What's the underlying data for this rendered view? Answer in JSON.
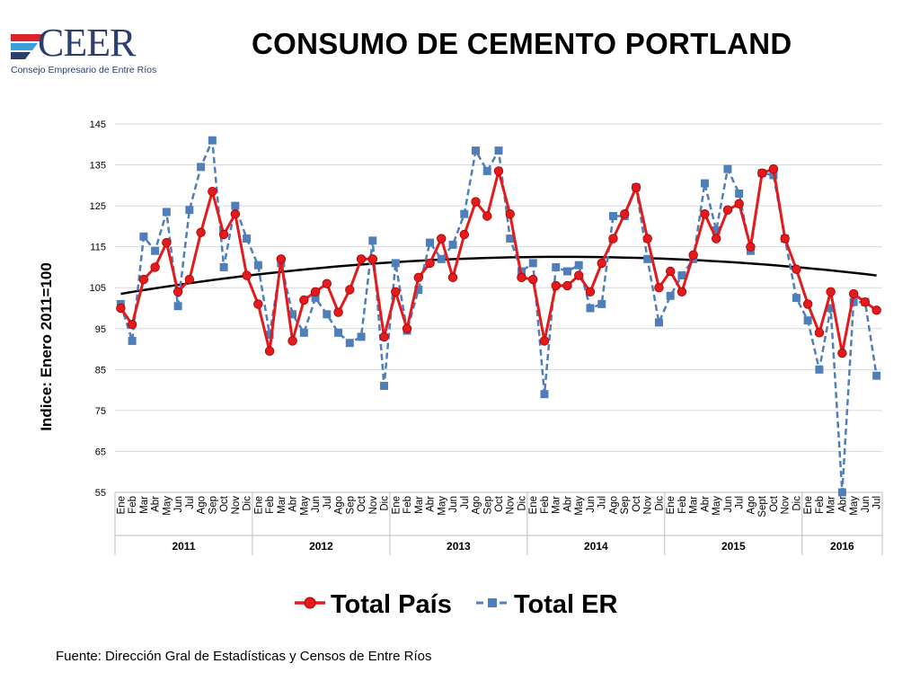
{
  "header": {
    "logo_name": "CEER",
    "logo_subtitle": "Consejo Empresario de Entre Ríos",
    "title": "CONSUMO DE CEMENTO PORTLAND"
  },
  "footer": {
    "source": "Fuente: Dirección Gral de Estadísticas y Censos de Entre Ríos"
  },
  "colors": {
    "total_pais": "#e41a1c",
    "total_er": "#4f7fba",
    "trend": "#000000",
    "grid": "#d9d9d9"
  },
  "chart_data": {
    "type": "line",
    "ylabel": "Indice: Enero 2011=100",
    "xlabel": "",
    "ylim": [
      55,
      145
    ],
    "yticks": [
      55,
      65,
      75,
      85,
      95,
      105,
      115,
      125,
      135,
      145
    ],
    "grid": true,
    "legend_position": "bottom",
    "years": [
      {
        "label": "2011",
        "count": 12
      },
      {
        "label": "2012",
        "count": 12
      },
      {
        "label": "2013",
        "count": 12
      },
      {
        "label": "2014",
        "count": 12
      },
      {
        "label": "2015",
        "count": 12
      },
      {
        "label": "2016",
        "count": 7
      }
    ],
    "categories": [
      "Ene",
      "Feb",
      "Mar",
      "Abr",
      "May",
      "Jun",
      "Jul",
      "Ago",
      "Sep",
      "Oct",
      "Nov",
      "Dic",
      "Ene",
      "Feb",
      "Mar",
      "Abr",
      "May",
      "Jun",
      "Jul",
      "Ago",
      "Sep",
      "Oct",
      "Nov",
      "Dic",
      "Ene",
      "Feb",
      "Mar",
      "Abr",
      "May",
      "Jun",
      "Jul",
      "Ago",
      "Sep",
      "Oct",
      "Nov",
      "Dic",
      "Ene",
      "Feb",
      "Mar",
      "Abr",
      "May",
      "Jun",
      "Jul",
      "Ago",
      "Sep",
      "Oct",
      "Nov",
      "Dic",
      "Ene",
      "Feb",
      "Mar",
      "Abr",
      "May",
      "Jun",
      "Jul",
      "Ago",
      "Sept",
      "Oct",
      "Nov",
      "Dic",
      "Ene",
      "Feb",
      "Mar",
      "Abr",
      "May",
      "Jun",
      "Jul"
    ],
    "series": [
      {
        "name": "Total País",
        "style": "solid-circle",
        "values": [
          100,
          96,
          107,
          110,
          116,
          104,
          107,
          118.5,
          128.5,
          118,
          123,
          108,
          101,
          89.5,
          112,
          92,
          102,
          104,
          106,
          99,
          104.5,
          112,
          112,
          93,
          104,
          95,
          107.5,
          111,
          117,
          107.5,
          118,
          126,
          122.5,
          133.5,
          123,
          107.5,
          107,
          92,
          105.5,
          105.5,
          108,
          104,
          111,
          117,
          123,
          129.5,
          117,
          105,
          109,
          104,
          113,
          123,
          117,
          124,
          125.5,
          115,
          133,
          134,
          117,
          109.5,
          101,
          94,
          104,
          89,
          103.5,
          101.5,
          99.5
        ]
      },
      {
        "name": "Total ER",
        "style": "dashed-square",
        "values": [
          101,
          92,
          117.5,
          114,
          123.5,
          100.5,
          124,
          134.5,
          141,
          110,
          125,
          117,
          110.5,
          93.5,
          111,
          98.5,
          94,
          102.5,
          98.5,
          94,
          91.5,
          93,
          116.5,
          81,
          111,
          94.5,
          104.5,
          116,
          112,
          115.5,
          123,
          138.5,
          133.5,
          138.5,
          117,
          109,
          111,
          79,
          110,
          109,
          110.5,
          100,
          101,
          122.5,
          122.5,
          129.5,
          112,
          96.5,
          103,
          108,
          112,
          130.5,
          119,
          134,
          128,
          114,
          133,
          132.5,
          117,
          102.5,
          97,
          85,
          100,
          55,
          101.5,
          101.5,
          83.5
        ]
      }
    ],
    "trendline": {
      "style": "solid-black",
      "values": [
        103.5,
        112.5,
        108
      ]
    }
  }
}
